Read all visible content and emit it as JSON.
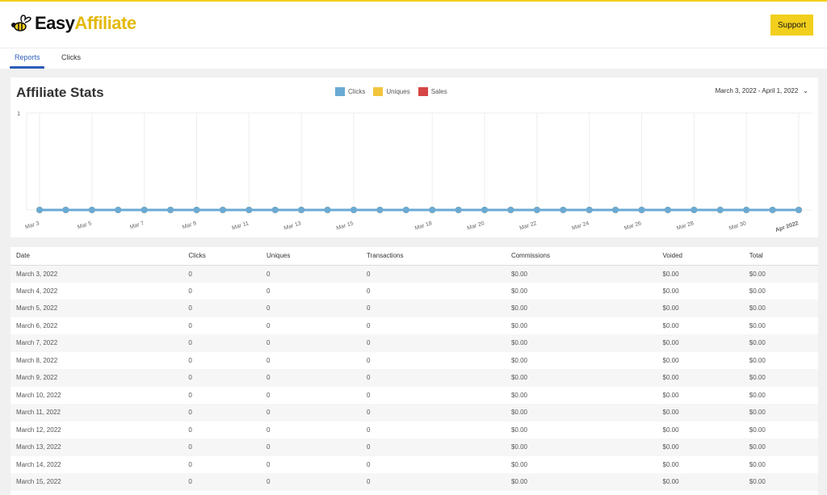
{
  "brand": {
    "part1": "Easy",
    "part2": "Affiliate"
  },
  "header": {
    "support_label": "Support"
  },
  "tabs": [
    {
      "label": "Reports",
      "active": true
    },
    {
      "label": "Clicks",
      "active": false
    }
  ],
  "stats": {
    "title": "Affiliate Stats",
    "date_range": "March 3, 2022 - April 1, 2022"
  },
  "colors": {
    "clicks": "#6aaad4",
    "uniques": "#f2c53d",
    "sales": "#d64545",
    "accent": "#f2cf1c"
  },
  "chart_data": {
    "type": "line",
    "legend": [
      "Clicks",
      "Uniques",
      "Sales"
    ],
    "legend_placement": "top",
    "x": [
      "Mar 3",
      "Mar 4",
      "Mar 5",
      "Mar 6",
      "Mar 7",
      "Mar 8",
      "Mar 9",
      "Mar 10",
      "Mar 11",
      "Mar 12",
      "Mar 13",
      "Mar 14",
      "Mar 15",
      "Mar 16",
      "Mar 17",
      "Mar 18",
      "Mar 19",
      "Mar 20",
      "Mar 21",
      "Mar 22",
      "Mar 23",
      "Mar 24",
      "Mar 25",
      "Mar 26",
      "Mar 27",
      "Mar 28",
      "Mar 29",
      "Mar 30",
      "Mar 31",
      "Apr 1"
    ],
    "tick_labels": [
      {
        "i": 0,
        "label": "Mar 3"
      },
      {
        "i": 2,
        "label": "Mar 5"
      },
      {
        "i": 4,
        "label": "Mar 7"
      },
      {
        "i": 6,
        "label": "Mar 9"
      },
      {
        "i": 8,
        "label": "Mar 11"
      },
      {
        "i": 10,
        "label": "Mar 13"
      },
      {
        "i": 12,
        "label": "Mar 15"
      },
      {
        "i": 15,
        "label": "Mar 18"
      },
      {
        "i": 17,
        "label": "Mar 20"
      },
      {
        "i": 19,
        "label": "Mar 22"
      },
      {
        "i": 21,
        "label": "Mar 24"
      },
      {
        "i": 23,
        "label": "Mar 26"
      },
      {
        "i": 25,
        "label": "Mar 28"
      },
      {
        "i": 27,
        "label": "Mar 30"
      },
      {
        "i": 29,
        "label": "Apr 2022"
      }
    ],
    "y_ticks": [
      "1"
    ],
    "ylim": [
      0,
      1
    ],
    "grid": true,
    "series": [
      {
        "name": "Clicks",
        "values": [
          0,
          0,
          0,
          0,
          0,
          0,
          0,
          0,
          0,
          0,
          0,
          0,
          0,
          0,
          0,
          0,
          0,
          0,
          0,
          0,
          0,
          0,
          0,
          0,
          0,
          0,
          0,
          0,
          0,
          0
        ]
      },
      {
        "name": "Uniques",
        "values": [
          0,
          0,
          0,
          0,
          0,
          0,
          0,
          0,
          0,
          0,
          0,
          0,
          0,
          0,
          0,
          0,
          0,
          0,
          0,
          0,
          0,
          0,
          0,
          0,
          0,
          0,
          0,
          0,
          0,
          0
        ]
      },
      {
        "name": "Sales",
        "values": [
          0,
          0,
          0,
          0,
          0,
          0,
          0,
          0,
          0,
          0,
          0,
          0,
          0,
          0,
          0,
          0,
          0,
          0,
          0,
          0,
          0,
          0,
          0,
          0,
          0,
          0,
          0,
          0,
          0,
          0
        ]
      }
    ]
  },
  "table": {
    "columns": [
      "Date",
      "Clicks",
      "Uniques",
      "Transactions",
      "Commissions",
      "Voided",
      "Total"
    ],
    "rows": [
      [
        "March 3, 2022",
        "0",
        "0",
        "0",
        "$0.00",
        "$0.00",
        "$0.00"
      ],
      [
        "March 4, 2022",
        "0",
        "0",
        "0",
        "$0.00",
        "$0.00",
        "$0.00"
      ],
      [
        "March 5, 2022",
        "0",
        "0",
        "0",
        "$0.00",
        "$0.00",
        "$0.00"
      ],
      [
        "March 6, 2022",
        "0",
        "0",
        "0",
        "$0.00",
        "$0.00",
        "$0.00"
      ],
      [
        "March 7, 2022",
        "0",
        "0",
        "0",
        "$0.00",
        "$0.00",
        "$0.00"
      ],
      [
        "March 8, 2022",
        "0",
        "0",
        "0",
        "$0.00",
        "$0.00",
        "$0.00"
      ],
      [
        "March 9, 2022",
        "0",
        "0",
        "0",
        "$0.00",
        "$0.00",
        "$0.00"
      ],
      [
        "March 10, 2022",
        "0",
        "0",
        "0",
        "$0.00",
        "$0.00",
        "$0.00"
      ],
      [
        "March 11, 2022",
        "0",
        "0",
        "0",
        "$0.00",
        "$0.00",
        "$0.00"
      ],
      [
        "March 12, 2022",
        "0",
        "0",
        "0",
        "$0.00",
        "$0.00",
        "$0.00"
      ],
      [
        "March 13, 2022",
        "0",
        "0",
        "0",
        "$0.00",
        "$0.00",
        "$0.00"
      ],
      [
        "March 14, 2022",
        "0",
        "0",
        "0",
        "$0.00",
        "$0.00",
        "$0.00"
      ],
      [
        "March 15, 2022",
        "0",
        "0",
        "0",
        "$0.00",
        "$0.00",
        "$0.00"
      ]
    ]
  }
}
